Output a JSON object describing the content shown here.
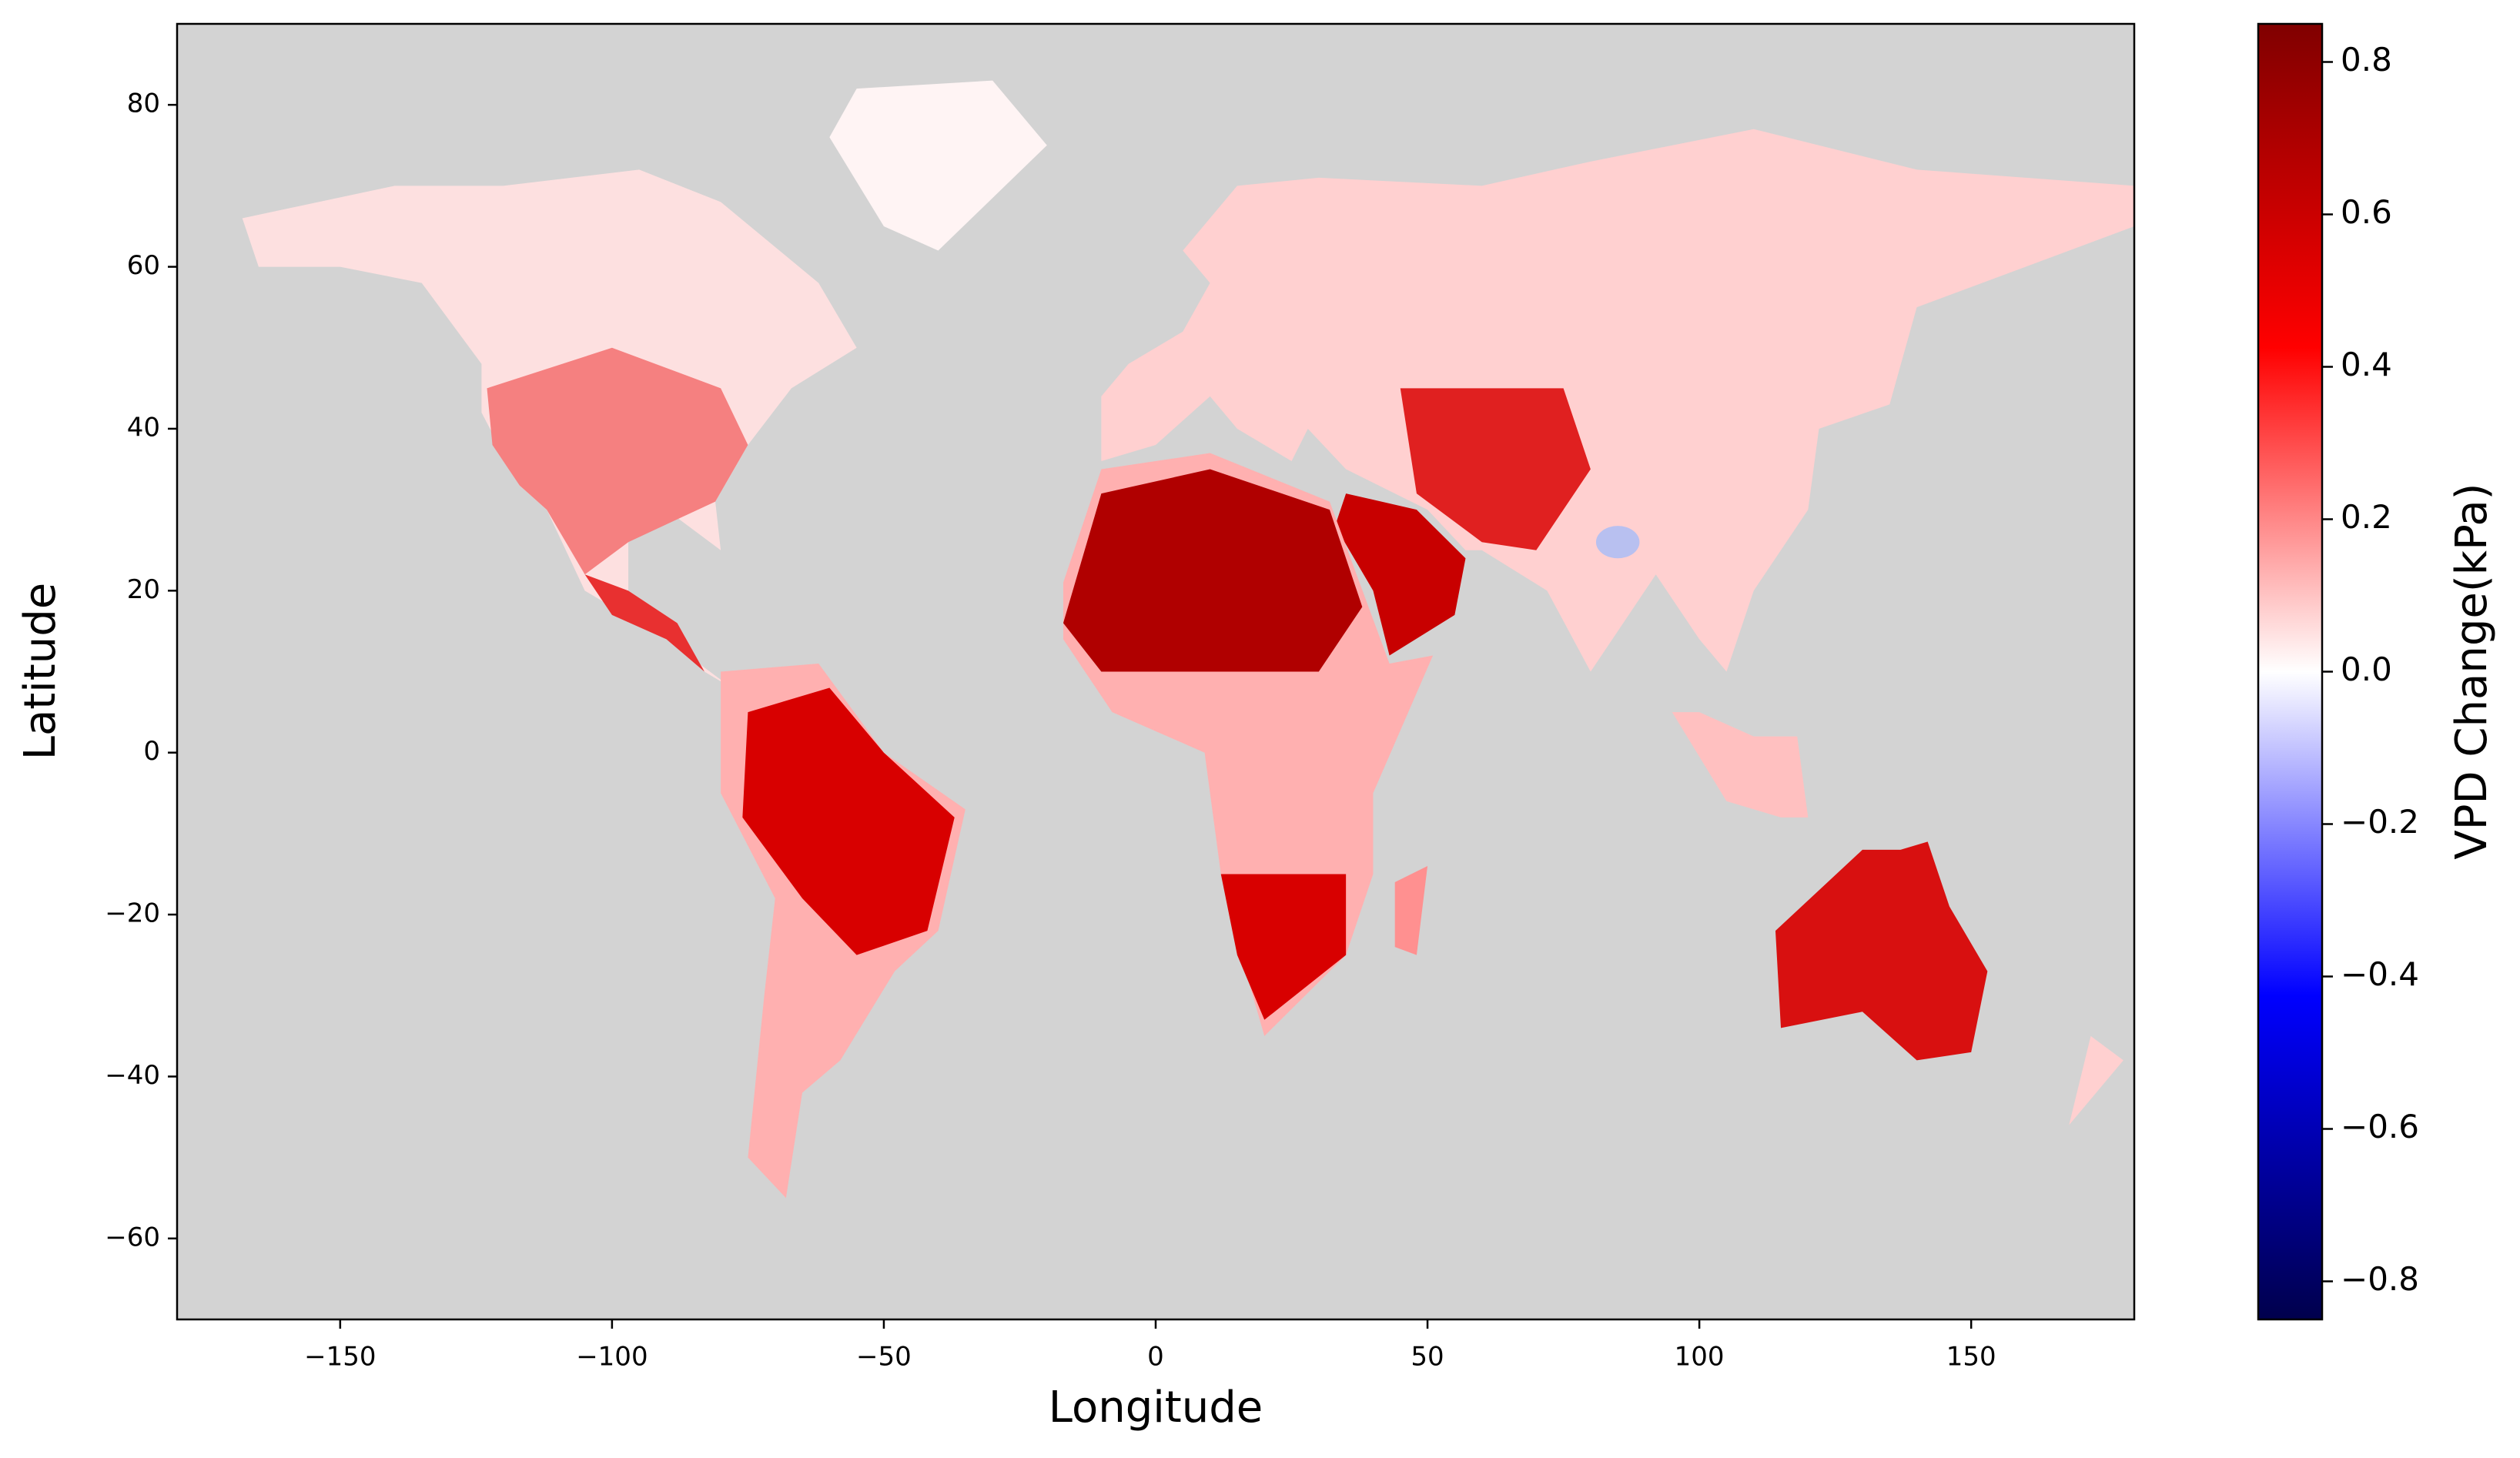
{
  "chart_data": {
    "type": "heatmap",
    "xlabel": "Longitude",
    "ylabel": "Latitude",
    "xlim": [
      -180,
      180
    ],
    "ylim": [
      -70,
      90
    ],
    "xticks": [
      {
        "value": -150,
        "label": "−150"
      },
      {
        "value": -100,
        "label": "−100"
      },
      {
        "value": -50,
        "label": "−50"
      },
      0,
      50,
      100,
      150
    ],
    "yticks": [
      {
        "value": -60,
        "label": "−60"
      },
      {
        "value": -40,
        "label": "−40"
      },
      {
        "value": -20,
        "label": "−20"
      },
      0,
      20,
      40,
      60,
      80
    ],
    "background": "#d3d3d3",
    "colorbar": {
      "label": "VPD Change(kPa)",
      "lim": [
        -0.85,
        0.85
      ],
      "ticks": [
        {
          "value": -0.8,
          "label": "−0.8"
        },
        {
          "value": -0.6,
          "label": "−0.6"
        },
        {
          "value": -0.4,
          "label": "−0.4"
        },
        {
          "value": -0.2,
          "label": "−0.2"
        },
        {
          "value": 0,
          "label": "0.0"
        },
        0.2,
        0.4,
        0.6,
        0.8
      ],
      "colormap": [
        "#00004c",
        "#0000ff",
        "#ffffff",
        "#ff0000",
        "#800000"
      ]
    }
  }
}
